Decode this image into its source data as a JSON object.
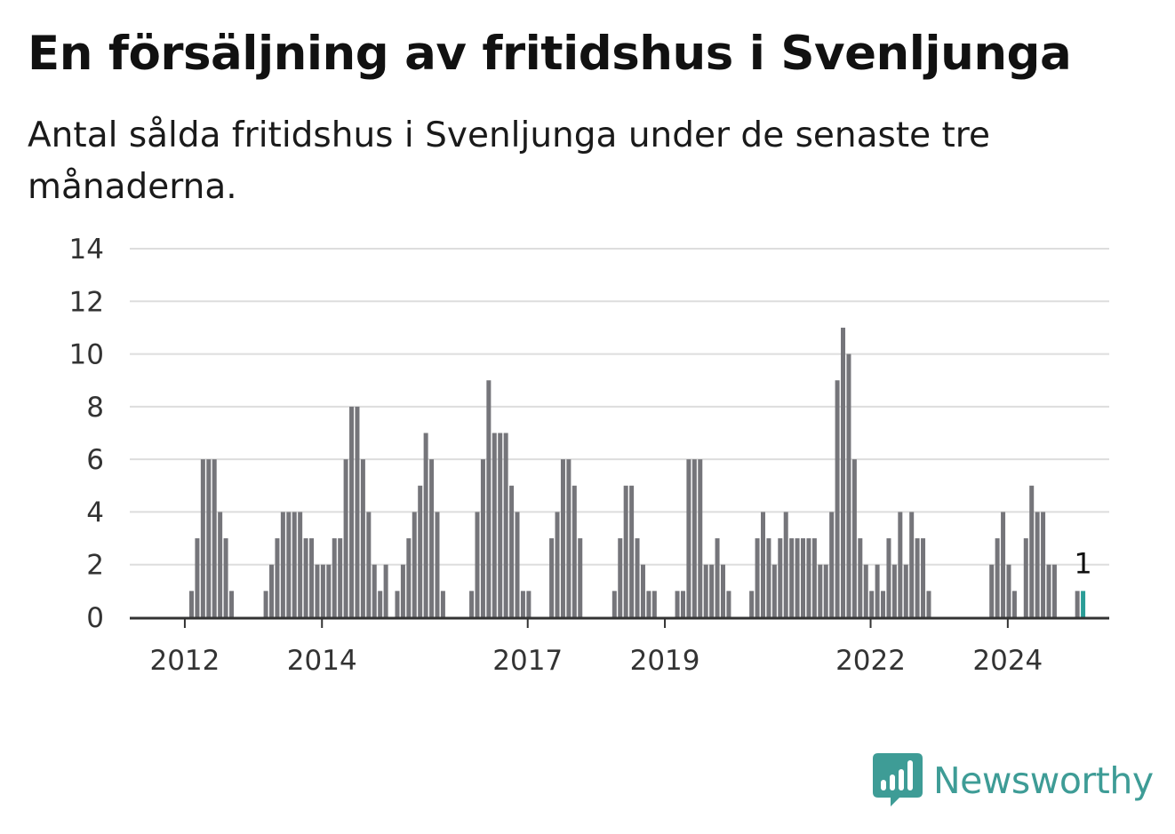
{
  "header": {
    "title": "En försäljning av fritidshus i Svenljunga",
    "subtitle": "Antal sålda fritidshus i Svenljunga under de senaste tre månaderna."
  },
  "brand": {
    "name": "Newsworthy",
    "color": "#3e9c96"
  },
  "chart_data": {
    "type": "bar",
    "x_start": "2011-01",
    "x_tick_labels": [
      "2012",
      "2014",
      "2017",
      "2019",
      "2022",
      "2024"
    ],
    "x_tick_months": [
      "2012-01",
      "2014-01",
      "2017-01",
      "2019-01",
      "2022-01",
      "2024-01"
    ],
    "values": [
      0,
      0,
      0,
      0,
      0,
      0,
      0,
      0,
      0,
      0,
      0,
      1,
      3,
      6,
      6,
      6,
      4,
      3,
      1,
      0,
      0,
      0,
      0,
      0,
      1,
      2,
      3,
      4,
      4,
      4,
      4,
      3,
      3,
      2,
      2,
      2,
      3,
      3,
      6,
      8,
      8,
      6,
      4,
      2,
      1,
      2,
      0,
      1,
      2,
      3,
      4,
      5,
      7,
      6,
      4,
      1,
      0,
      0,
      0,
      0,
      1,
      4,
      6,
      9,
      7,
      7,
      7,
      5,
      4,
      1,
      1,
      0,
      0,
      0,
      3,
      4,
      6,
      6,
      5,
      3,
      0,
      0,
      0,
      0,
      0,
      1,
      3,
      5,
      5,
      3,
      2,
      1,
      1,
      0,
      0,
      0,
      1,
      1,
      6,
      6,
      6,
      2,
      2,
      3,
      2,
      1,
      0,
      0,
      0,
      1,
      3,
      4,
      3,
      2,
      3,
      4,
      3,
      3,
      3,
      3,
      3,
      2,
      2,
      4,
      9,
      11,
      10,
      6,
      3,
      2,
      1,
      2,
      1,
      3,
      2,
      4,
      2,
      4,
      3,
      3,
      1,
      0,
      0,
      0,
      0,
      0,
      0,
      0,
      0,
      0,
      0,
      2,
      3,
      4,
      2,
      1,
      0,
      3,
      5,
      4,
      4,
      2,
      2,
      0,
      0,
      0,
      1,
      1
    ],
    "highlight_last": true,
    "last_value_label": "1",
    "ylim": [
      0,
      14
    ],
    "y_ticks": [
      0,
      2,
      4,
      6,
      8,
      10,
      12,
      14
    ],
    "grid": true,
    "colors": {
      "bar": "#75757a",
      "highlight": "#2a9d97",
      "grid": "#dddddd",
      "axis": "#333333"
    }
  }
}
